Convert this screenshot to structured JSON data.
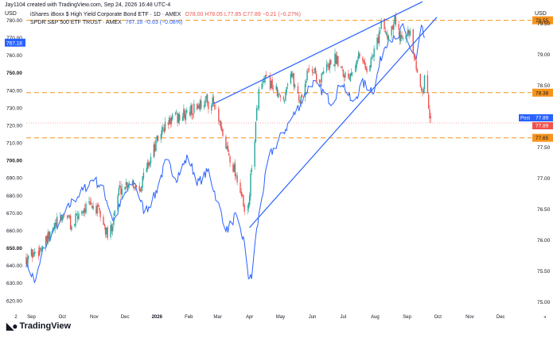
{
  "header": {
    "credit": "Jay1104 created with TradingView.com, Sep 24, 2026 16:48 UTC-4",
    "symbol_line": "iShares iBoxx $ High Yield Corporate Bond ETF · 1D · AMEX",
    "ohlc_line": "O78.00 H78.05 L77.85 C77.89 −0.21 (−0.27%)",
    "compare_line": "SPDR S&P 500 ETF TRUST · AMEX",
    "compare_value": "767.18 −0.63 (−0.08%)",
    "left_currency": "USD",
    "right_currency": "USD"
  },
  "footer": {
    "brand": "TradingView"
  },
  "colors": {
    "up": "#26a69a",
    "down": "#ef5350",
    "spy_line": "#2962ff",
    "trendline": "#2962ff",
    "level": "#f7941d",
    "post_badge": "#2962ff",
    "axis_text": "#131722"
  },
  "chart_data": {
    "type": "candlestick_with_overlay",
    "title": "iShares iBoxx $ High Yield Corporate Bond ETF · 1D · AMEX",
    "x_ticks": [
      "2",
      "Sep",
      "Oct",
      "Nov",
      "Dec",
      "2026",
      "Feb",
      "Mar",
      "Apr",
      "May",
      "Jun",
      "Jul",
      "Aug",
      "Sep",
      "Oct",
      "Nov",
      "Dec"
    ],
    "right_axis": {
      "label": "USD",
      "ticks": [
        75.0,
        75.5,
        76.0,
        76.5,
        77.0,
        77.5,
        78.0,
        78.5,
        79.0,
        79.5
      ],
      "range": [
        74.85,
        79.75
      ]
    },
    "left_axis": {
      "label": "USD",
      "ticks": [
        620.0,
        630.0,
        640.0,
        650.0,
        660.0,
        670.0,
        680.0,
        690.0,
        700.0,
        710.0,
        720.0,
        730.0,
        740.0,
        750.0,
        760.0,
        770.0,
        780.0
      ],
      "range": [
        614,
        787
      ]
    },
    "levels": [
      {
        "label": "79.55",
        "value": 79.55
      },
      {
        "label": "78.38",
        "value": 78.38
      },
      {
        "label": "77.65",
        "value": 77.65
      }
    ],
    "top_level_label": "79.55",
    "post_label": "Post",
    "post_value": "77.89",
    "last_value": "77.89",
    "spy_last": "767.18",
    "hyg_anchors": [
      [
        "2025-08-27",
        75.72
      ],
      [
        "2025-09-05",
        75.8
      ],
      [
        "2025-09-15",
        75.95
      ],
      [
        "2025-09-25",
        76.25
      ],
      [
        "2025-10-05",
        76.45
      ],
      [
        "2025-10-10",
        76.2
      ],
      [
        "2025-10-20",
        76.5
      ],
      [
        "2025-10-31",
        76.55
      ],
      [
        "2025-11-07",
        76.4
      ],
      [
        "2025-11-15",
        76.0
      ],
      [
        "2025-11-25",
        76.8
      ],
      [
        "2025-12-05",
        76.95
      ],
      [
        "2025-12-15",
        76.85
      ],
      [
        "2025-12-25",
        77.3
      ],
      [
        "2026-01-05",
        77.75
      ],
      [
        "2026-01-15",
        77.95
      ],
      [
        "2026-01-25",
        78.0
      ],
      [
        "2026-02-05",
        78.1
      ],
      [
        "2026-02-15",
        78.25
      ],
      [
        "2026-02-25",
        78.2
      ],
      [
        "2026-03-05",
        77.7
      ],
      [
        "2026-03-15",
        77.25
      ],
      [
        "2026-03-22",
        76.9
      ],
      [
        "2026-03-29",
        76.25
      ],
      [
        "2026-04-05",
        77.5
      ],
      [
        "2026-04-10",
        78.4
      ],
      [
        "2026-04-18",
        78.6
      ],
      [
        "2026-04-25",
        78.45
      ],
      [
        "2026-05-03",
        78.2
      ],
      [
        "2026-05-10",
        78.75
      ],
      [
        "2026-05-20",
        78.25
      ],
      [
        "2026-05-30",
        78.85
      ],
      [
        "2026-06-08",
        78.55
      ],
      [
        "2026-06-15",
        78.8
      ],
      [
        "2026-06-25",
        78.95
      ],
      [
        "2026-07-05",
        78.6
      ],
      [
        "2026-07-15",
        79.0
      ],
      [
        "2026-07-25",
        78.75
      ],
      [
        "2026-07-31",
        79.05
      ],
      [
        "2026-08-08",
        79.5
      ],
      [
        "2026-08-13",
        79.3
      ],
      [
        "2026-08-20",
        79.6
      ],
      [
        "2026-08-25",
        79.25
      ],
      [
        "2026-08-30",
        79.45
      ],
      [
        "2026-09-05",
        79.25
      ],
      [
        "2026-09-10",
        78.7
      ],
      [
        "2026-09-15",
        78.45
      ],
      [
        "2026-09-19",
        78.6
      ],
      [
        "2026-09-22",
        78.15
      ],
      [
        "2026-09-24",
        77.89
      ]
    ],
    "spy_anchors": [
      [
        "2025-08-27",
        642
      ],
      [
        "2025-09-05",
        630
      ],
      [
        "2025-09-12",
        648
      ],
      [
        "2025-09-22",
        660
      ],
      [
        "2025-10-02",
        668
      ],
      [
        "2025-10-10",
        676
      ],
      [
        "2025-10-20",
        682
      ],
      [
        "2025-10-31",
        690
      ],
      [
        "2025-11-10",
        683
      ],
      [
        "2025-11-20",
        665
      ],
      [
        "2025-11-30",
        680
      ],
      [
        "2025-12-10",
        688
      ],
      [
        "2025-12-20",
        670
      ],
      [
        "2025-12-30",
        680
      ],
      [
        "2026-01-10",
        700
      ],
      [
        "2026-01-20",
        690
      ],
      [
        "2026-01-31",
        702
      ],
      [
        "2026-02-10",
        687
      ],
      [
        "2026-02-20",
        694
      ],
      [
        "2026-03-01",
        676
      ],
      [
        "2026-03-10",
        660
      ],
      [
        "2026-03-18",
        668
      ],
      [
        "2026-03-26",
        655
      ],
      [
        "2026-03-31",
        634
      ],
      [
        "2026-04-03",
        632
      ],
      [
        "2026-04-06",
        652
      ],
      [
        "2026-04-12",
        676
      ],
      [
        "2026-04-20",
        702
      ],
      [
        "2026-04-30",
        712
      ],
      [
        "2026-05-10",
        722
      ],
      [
        "2026-05-20",
        732
      ],
      [
        "2026-05-31",
        745
      ],
      [
        "2026-06-10",
        740
      ],
      [
        "2026-06-20",
        733
      ],
      [
        "2026-06-30",
        745
      ],
      [
        "2026-07-10",
        732
      ],
      [
        "2026-07-20",
        744
      ],
      [
        "2026-07-31",
        740
      ],
      [
        "2026-08-08",
        762
      ],
      [
        "2026-08-15",
        771
      ],
      [
        "2026-08-22",
        767
      ],
      [
        "2026-08-28",
        777
      ],
      [
        "2026-09-04",
        764
      ],
      [
        "2026-09-10",
        757
      ],
      [
        "2026-09-15",
        775
      ],
      [
        "2026-09-18",
        770
      ]
    ],
    "trendlines": [
      {
        "name": "upper",
        "from": [
          "2026-02-25",
          78.2
        ],
        "to": [
          "2026-09-16",
          79.85
        ]
      },
      {
        "name": "lower",
        "from": [
          "2026-04-01",
          76.2
        ],
        "to": [
          "2026-09-30",
          79.6
        ]
      }
    ],
    "x_range": [
      "2025-08-27",
      "2026-12-31"
    ]
  }
}
